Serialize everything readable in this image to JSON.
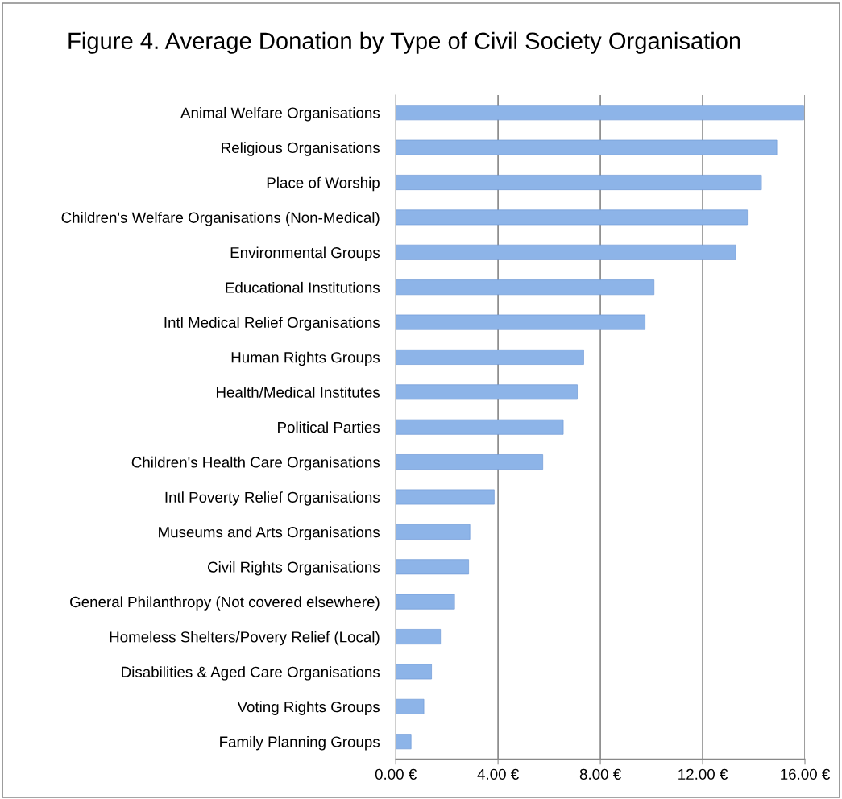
{
  "chart_data": {
    "type": "bar",
    "orientation": "horizontal",
    "title": "Figure 4. Average Donation by Type of Civil Society Organisation",
    "categories": [
      "Animal Welfare Organisations",
      "Religious Organisations",
      "Place of Worship",
      "Children's Welfare Organisations (Non-Medical)",
      "Environmental Groups",
      "Educational Institutions",
      "Intl Medical Relief Organisations",
      "Human Rights Groups",
      "Health/Medical Institutes",
      "Political Parties",
      "Children's Health Care Organisations",
      "Intl Poverty Relief Organisations",
      "Museums and Arts Organisations",
      "Civil Rights Organisations",
      "General Philanthropy (Not covered elsewhere)",
      "Homeless Shelters/Povery Relief (Local)",
      "Disabilities & Aged Care Organisations",
      "Voting Rights Groups",
      "Family Planning Groups"
    ],
    "values": [
      15.95,
      14.9,
      14.3,
      13.75,
      13.3,
      10.1,
      9.75,
      7.35,
      7.1,
      6.55,
      5.75,
      3.85,
      2.9,
      2.85,
      2.3,
      1.75,
      1.4,
      1.1,
      0.6
    ],
    "color": "#8db4e8",
    "xlim": [
      0,
      16
    ],
    "xticks": [
      {
        "value": 0,
        "label": "0.00 €"
      },
      {
        "value": 4,
        "label": "4.00 €"
      },
      {
        "value": 8,
        "label": "8.00 €"
      },
      {
        "value": 12,
        "label": "12.00 €"
      },
      {
        "value": 16,
        "label": "16.00 €"
      }
    ],
    "grid": "x",
    "legend": false
  }
}
